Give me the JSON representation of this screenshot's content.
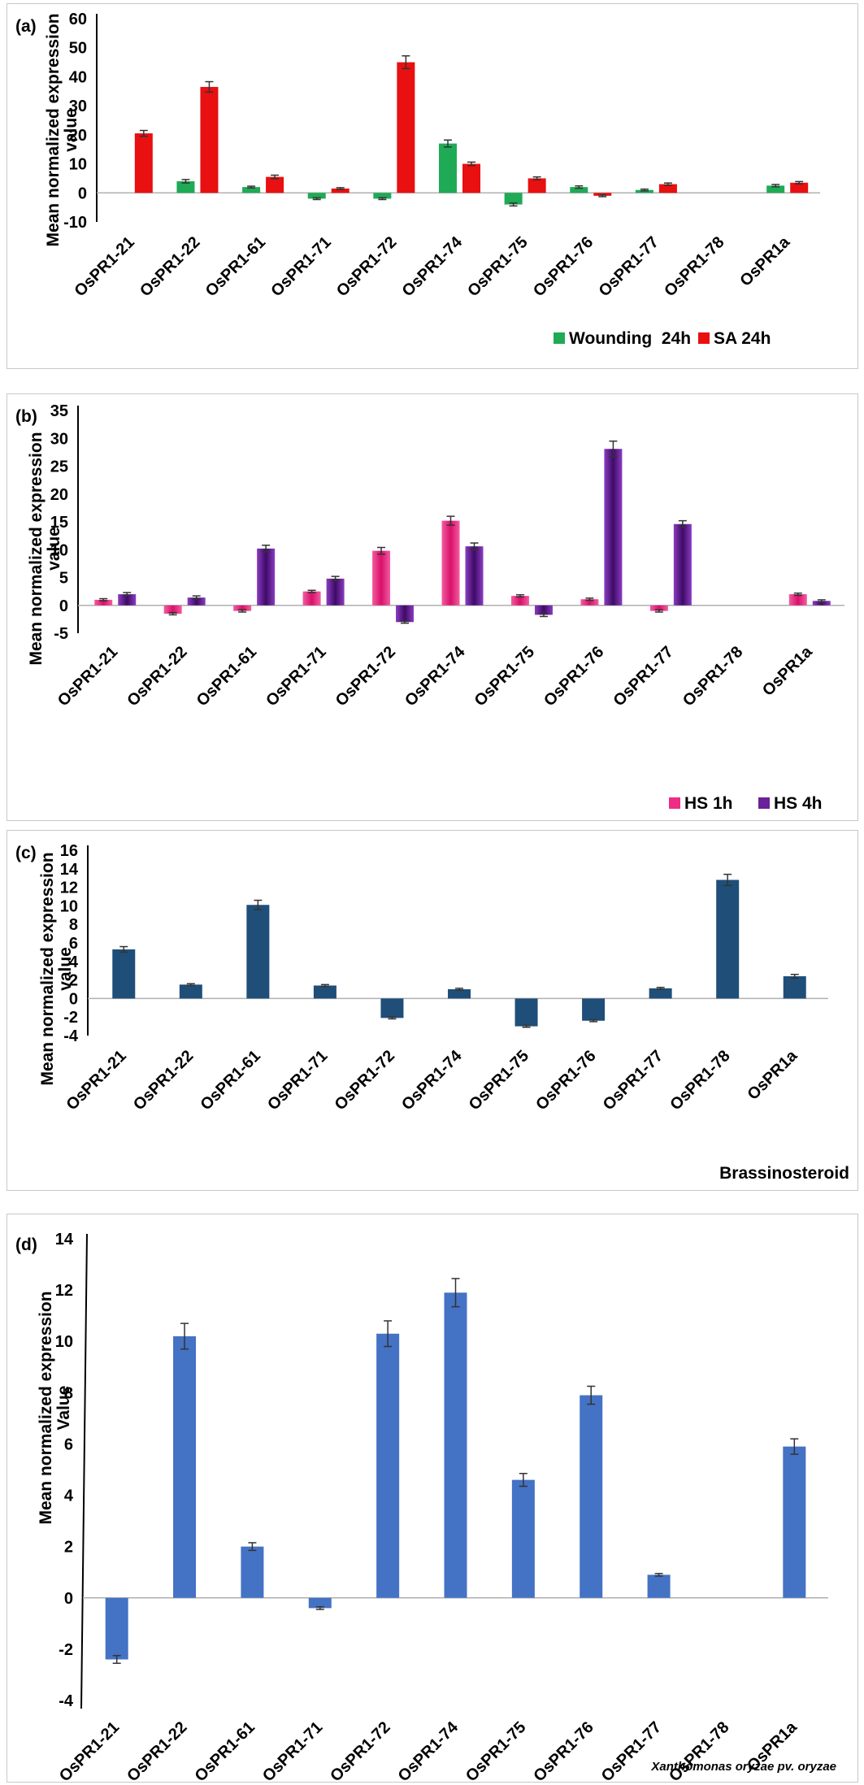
{
  "figure": {
    "panels": [
      {
        "letter": "(a)",
        "ylabel_line1": "Mean normalized expression",
        "ylabel_line2": "value",
        "caption": "",
        "legend": [
          {
            "label": "Wounding  24h",
            "color": "#1faa55"
          },
          {
            "label": "SA 24h",
            "color": "#e81010"
          }
        ]
      },
      {
        "letter": "(b)",
        "ylabel_line1": "Mean normalized expression",
        "ylabel_line2": "value",
        "caption": "",
        "legend": [
          {
            "label": "HS 1h",
            "color": "#ee2d86"
          },
          {
            "label": "HS 4h",
            "color": "#6a2199"
          }
        ]
      },
      {
        "letter": "(c)",
        "ylabel_line1": "Mean normalized expression",
        "ylabel_line2": "value",
        "caption": "Brassinosteroid",
        "legend": []
      },
      {
        "letter": "(d)",
        "ylabel_line1": "Mean normalized expression",
        "ylabel_line2": "Value",
        "caption": "Xanthomonas oryzae pv. oryzae",
        "legend": []
      }
    ]
  },
  "chart_data": [
    {
      "type": "bar",
      "title": "",
      "categories": [
        "OsPR1-21",
        "OsPR1-22",
        "OsPR1-61",
        "OsPR1-71",
        "OsPR1-72",
        "OsPR1-74",
        "OsPR1-75",
        "OsPR1-76",
        "OsPR1-77",
        "OsPR1-78",
        "OsPR1a"
      ],
      "series": [
        {
          "name": "Wounding  24h",
          "color": "#1faa55",
          "values": [
            null,
            4,
            2,
            -2,
            -2,
            17,
            -4,
            2,
            1,
            null,
            2.5
          ],
          "errors": [
            null,
            0.6,
            0.3,
            0.3,
            0.3,
            1.2,
            0.5,
            0.4,
            0.3,
            null,
            0.4
          ]
        },
        {
          "name": "SA 24h",
          "color": "#e81010",
          "values": [
            20.5,
            36.5,
            5.5,
            1.5,
            45,
            10,
            5,
            -1,
            3,
            null,
            3.5
          ],
          "errors": [
            1,
            1.8,
            0.6,
            0.3,
            2.2,
            0.6,
            0.5,
            0.3,
            0.4,
            null,
            0.4
          ]
        }
      ],
      "xlabel": "",
      "ylabel": "Mean normalized expression value",
      "ylim": [
        -10,
        60
      ],
      "yticks": [
        "60",
        "50",
        "40",
        "30",
        "20",
        "10",
        "0",
        "-10"
      ],
      "legend_position": "bottom-right"
    },
    {
      "type": "bar",
      "title": "",
      "categories": [
        "OsPR1-21",
        "OsPR1-22",
        "OsPR1-61",
        "OsPR1-71",
        "OsPR1-72",
        "OsPR1-74",
        "OsPR1-75",
        "OsPR1-76",
        "OsPR1-77",
        "OsPR1-78",
        "OsPR1a"
      ],
      "series": [
        {
          "name": "HS 1h",
          "color": "#ee2d86",
          "values": [
            1,
            -1.5,
            -1,
            2.5,
            9.8,
            15.2,
            1.7,
            1.1,
            -1,
            null,
            2
          ],
          "errors": [
            0.2,
            0.2,
            0.2,
            0.2,
            0.6,
            0.8,
            0.2,
            0.2,
            0.2,
            null,
            0.2
          ]
        },
        {
          "name": "HS 4h",
          "color": "#6a2199",
          "values": [
            2,
            1.4,
            10.2,
            4.8,
            -3,
            10.6,
            -1.7,
            28.1,
            14.6,
            null,
            0.8
          ],
          "errors": [
            0.3,
            0.3,
            0.6,
            0.4,
            0.2,
            0.6,
            0.3,
            1.4,
            0.6,
            null,
            0.2
          ]
        }
      ],
      "xlabel": "",
      "ylabel": "Mean normalized expression value",
      "ylim": [
        -5,
        35
      ],
      "yticks": [
        "35",
        "30",
        "25",
        "20",
        "15",
        "10",
        "5",
        "0",
        "-5"
      ],
      "legend_position": "bottom-right"
    },
    {
      "type": "bar",
      "title": "",
      "categories": [
        "OsPR1-21",
        "OsPR1-22",
        "OsPR1-61",
        "OsPR1-71",
        "OsPR1-72",
        "OsPR1-74",
        "OsPR1-75",
        "OsPR1-76",
        "OsPR1-77",
        "OsPR1-78",
        "OsPR1a"
      ],
      "series": [
        {
          "name": "Brassinosteroid",
          "color": "#1f4e79",
          "values": [
            5.3,
            1.5,
            10.1,
            1.4,
            -2.1,
            1.0,
            -3.0,
            -2.4,
            1.1,
            12.8,
            2.4
          ],
          "errors": [
            0.3,
            0.1,
            0.5,
            0.1,
            0.1,
            0.1,
            0.1,
            0.1,
            0.1,
            0.6,
            0.2
          ]
        }
      ],
      "xlabel": "",
      "ylabel": "Mean normalized expression value",
      "ylim": [
        -4,
        16
      ],
      "yticks": [
        "16",
        "14",
        "12",
        "10",
        "8",
        "6",
        "4",
        "2",
        "0",
        "-2",
        "-4"
      ],
      "legend_position": "none"
    },
    {
      "type": "bar",
      "title": "",
      "categories": [
        "OsPR1-21",
        "OsPR1-22",
        "OsPR1-61",
        "OsPR1-71",
        "OsPR1-72",
        "OsPR1-74",
        "OsPR1-75",
        "OsPR1-76",
        "OsPR1-77",
        "OsPR1-78",
        "OsPR1a"
      ],
      "series": [
        {
          "name": "Xanthomonas oryzae pv. oryzae",
          "color": "#4472c4",
          "values": [
            -2.4,
            10.2,
            2.0,
            -0.4,
            10.3,
            11.9,
            4.6,
            7.9,
            0.9,
            null,
            5.9
          ],
          "errors": [
            0.15,
            0.5,
            0.15,
            0.05,
            0.5,
            0.55,
            0.25,
            0.35,
            0.05,
            null,
            0.3
          ]
        }
      ],
      "xlabel": "",
      "ylabel": "Mean normalized expression Value",
      "ylim": [
        -4,
        14
      ],
      "yticks": [
        "14",
        "12",
        "10",
        "8",
        "6",
        "4",
        "2",
        "0",
        "-2",
        "-4"
      ],
      "legend_position": "none"
    }
  ]
}
